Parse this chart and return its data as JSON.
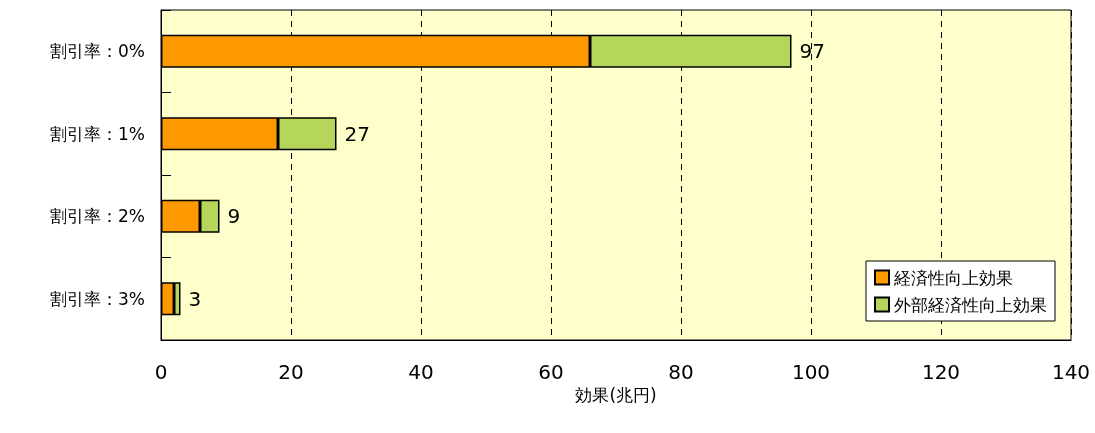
{
  "chart_data": {
    "type": "bar",
    "orientation": "horizontal",
    "stacked": true,
    "categories": [
      "割引率：0%",
      "割引率：1%",
      "割引率：2%",
      "割引率：3%"
    ],
    "series": [
      {
        "name": "経済性向上効果",
        "color": "#ff9900",
        "values": [
          66,
          18,
          6,
          2
        ]
      },
      {
        "name": "外部経済性向上効果",
        "color": "#b5d65a",
        "values": [
          31,
          9,
          3,
          1
        ]
      }
    ],
    "totals": [
      "97",
      "27",
      "9",
      "3"
    ],
    "xlabel": "効果(兆円)",
    "xlim": [
      0,
      140
    ],
    "xticks": [
      0,
      20,
      40,
      60,
      80,
      100,
      120,
      140
    ],
    "grid": "x",
    "legend": "bottom right"
  }
}
